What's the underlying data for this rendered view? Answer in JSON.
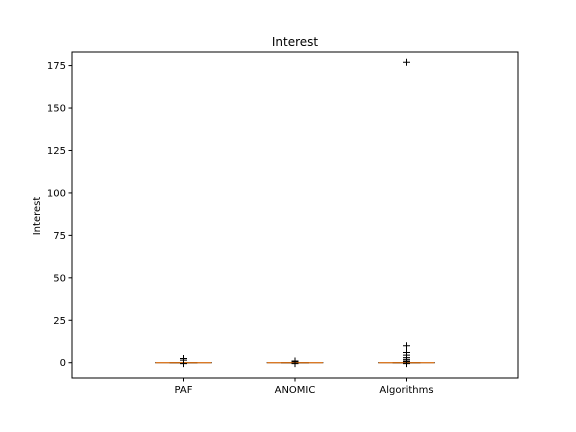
{
  "chart_data": {
    "type": "box",
    "title": "Interest",
    "xlabel": "",
    "ylabel": "Interest",
    "categories": [
      "PAF",
      "ANOMIC",
      "Algorithms"
    ],
    "ylim": [
      -9,
      183
    ],
    "yticks": [
      0,
      25,
      50,
      75,
      100,
      125,
      150,
      175
    ],
    "grid": false,
    "boxes": [
      {
        "category": "PAF",
        "whisker_low": 0,
        "q1": 0,
        "median": 0,
        "q3": 0,
        "whisker_high": 0,
        "outliers": [
          2.5,
          1.5,
          -0.5
        ]
      },
      {
        "category": "ANOMIC",
        "whisker_low": 0,
        "q1": 0,
        "median": 0,
        "q3": 0,
        "whisker_high": 0,
        "outliers": [
          1,
          0.5,
          -0.5
        ]
      },
      {
        "category": "Algorithms",
        "whisker_low": 0,
        "q1": 0,
        "median": 0,
        "q3": 0,
        "whisker_high": 0,
        "outliers": [
          177,
          10,
          6,
          4.5,
          3,
          2,
          1,
          0.5,
          -0.5
        ]
      }
    ],
    "colors": {
      "median": "#ff7f0e",
      "box": "#000000",
      "outlier": "#000000",
      "frame": "#000000"
    }
  }
}
